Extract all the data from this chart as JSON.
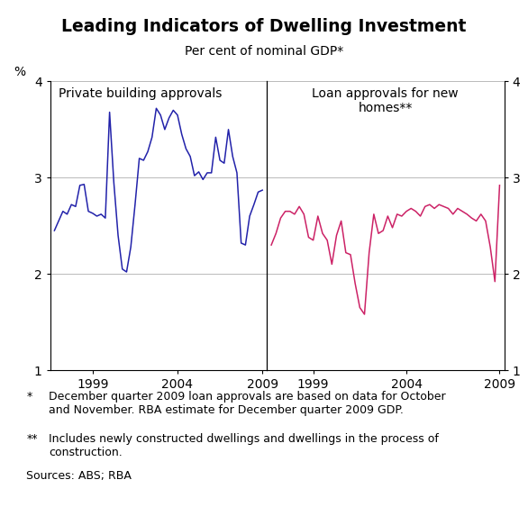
{
  "title": "Leading Indicators of Dwelling Investment",
  "subtitle": "Per cent of nominal GDP*",
  "ylim": [
    1.0,
    4.0
  ],
  "yticks": [
    1,
    2,
    3,
    4
  ],
  "color_blue": "#2222aa",
  "color_pink": "#cc2266",
  "blue_x": [
    1996.75,
    1997.0,
    1997.25,
    1997.5,
    1997.75,
    1998.0,
    1998.25,
    1998.5,
    1998.75,
    1999.0,
    1999.25,
    1999.5,
    1999.75,
    2000.0,
    2000.25,
    2000.5,
    2000.75,
    2001.0,
    2001.25,
    2001.5,
    2001.75,
    2002.0,
    2002.25,
    2002.5,
    2002.75,
    2003.0,
    2003.25,
    2003.5,
    2003.75,
    2004.0,
    2004.25,
    2004.5,
    2004.75,
    2005.0,
    2005.25,
    2005.5,
    2005.75,
    2006.0,
    2006.25,
    2006.5,
    2006.75,
    2007.0,
    2007.25,
    2007.5,
    2007.75,
    2008.0,
    2008.25,
    2008.5,
    2008.75,
    2009.0
  ],
  "blue_y": [
    2.45,
    2.55,
    2.65,
    2.62,
    2.72,
    2.7,
    2.92,
    2.93,
    2.65,
    2.63,
    2.6,
    2.62,
    2.58,
    3.68,
    2.95,
    2.4,
    2.05,
    2.02,
    2.28,
    2.72,
    3.2,
    3.18,
    3.27,
    3.42,
    3.72,
    3.65,
    3.5,
    3.62,
    3.7,
    3.65,
    3.45,
    3.3,
    3.22,
    3.02,
    3.06,
    2.98,
    3.05,
    3.05,
    3.42,
    3.18,
    3.15,
    3.5,
    3.22,
    3.05,
    2.32,
    2.3,
    2.6,
    2.72,
    2.85,
    2.87
  ],
  "pink_x": [
    1996.75,
    1997.0,
    1997.25,
    1997.5,
    1997.75,
    1998.0,
    1998.25,
    1998.5,
    1998.75,
    1999.0,
    1999.25,
    1999.5,
    1999.75,
    2000.0,
    2000.25,
    2000.5,
    2000.75,
    2001.0,
    2001.25,
    2001.5,
    2001.75,
    2002.0,
    2002.25,
    2002.5,
    2002.75,
    2003.0,
    2003.25,
    2003.5,
    2003.75,
    2004.0,
    2004.25,
    2004.5,
    2004.75,
    2005.0,
    2005.25,
    2005.5,
    2005.75,
    2006.0,
    2006.25,
    2006.5,
    2006.75,
    2007.0,
    2007.25,
    2007.5,
    2007.75,
    2008.0,
    2008.25,
    2008.5,
    2008.75,
    2009.0
  ],
  "pink_y": [
    2.3,
    2.42,
    2.58,
    2.65,
    2.65,
    2.62,
    2.7,
    2.62,
    2.38,
    2.35,
    2.6,
    2.42,
    2.35,
    2.1,
    2.4,
    2.55,
    2.22,
    2.2,
    1.9,
    1.65,
    1.58,
    2.22,
    2.62,
    2.42,
    2.45,
    2.6,
    2.48,
    2.62,
    2.6,
    2.65,
    2.68,
    2.65,
    2.6,
    2.7,
    2.72,
    2.68,
    2.72,
    2.7,
    2.68,
    2.62,
    2.68,
    2.65,
    2.62,
    2.58,
    2.55,
    2.62,
    2.55,
    2.28,
    1.92,
    2.92
  ],
  "label_left": "Private building approvals",
  "label_right": "Loan approvals for new\nhomes**",
  "footnote1_bullet": "*",
  "footnote1_text": "December quarter 2009 loan approvals are based on data for October\nand November. RBA estimate for December quarter 2009 GDP.",
  "footnote2_bullet": "**",
  "footnote2_text": "Includes newly constructed dwellings and dwellings in the process of\nconstruction.",
  "footnote3": "Sources: ABS; RBA"
}
